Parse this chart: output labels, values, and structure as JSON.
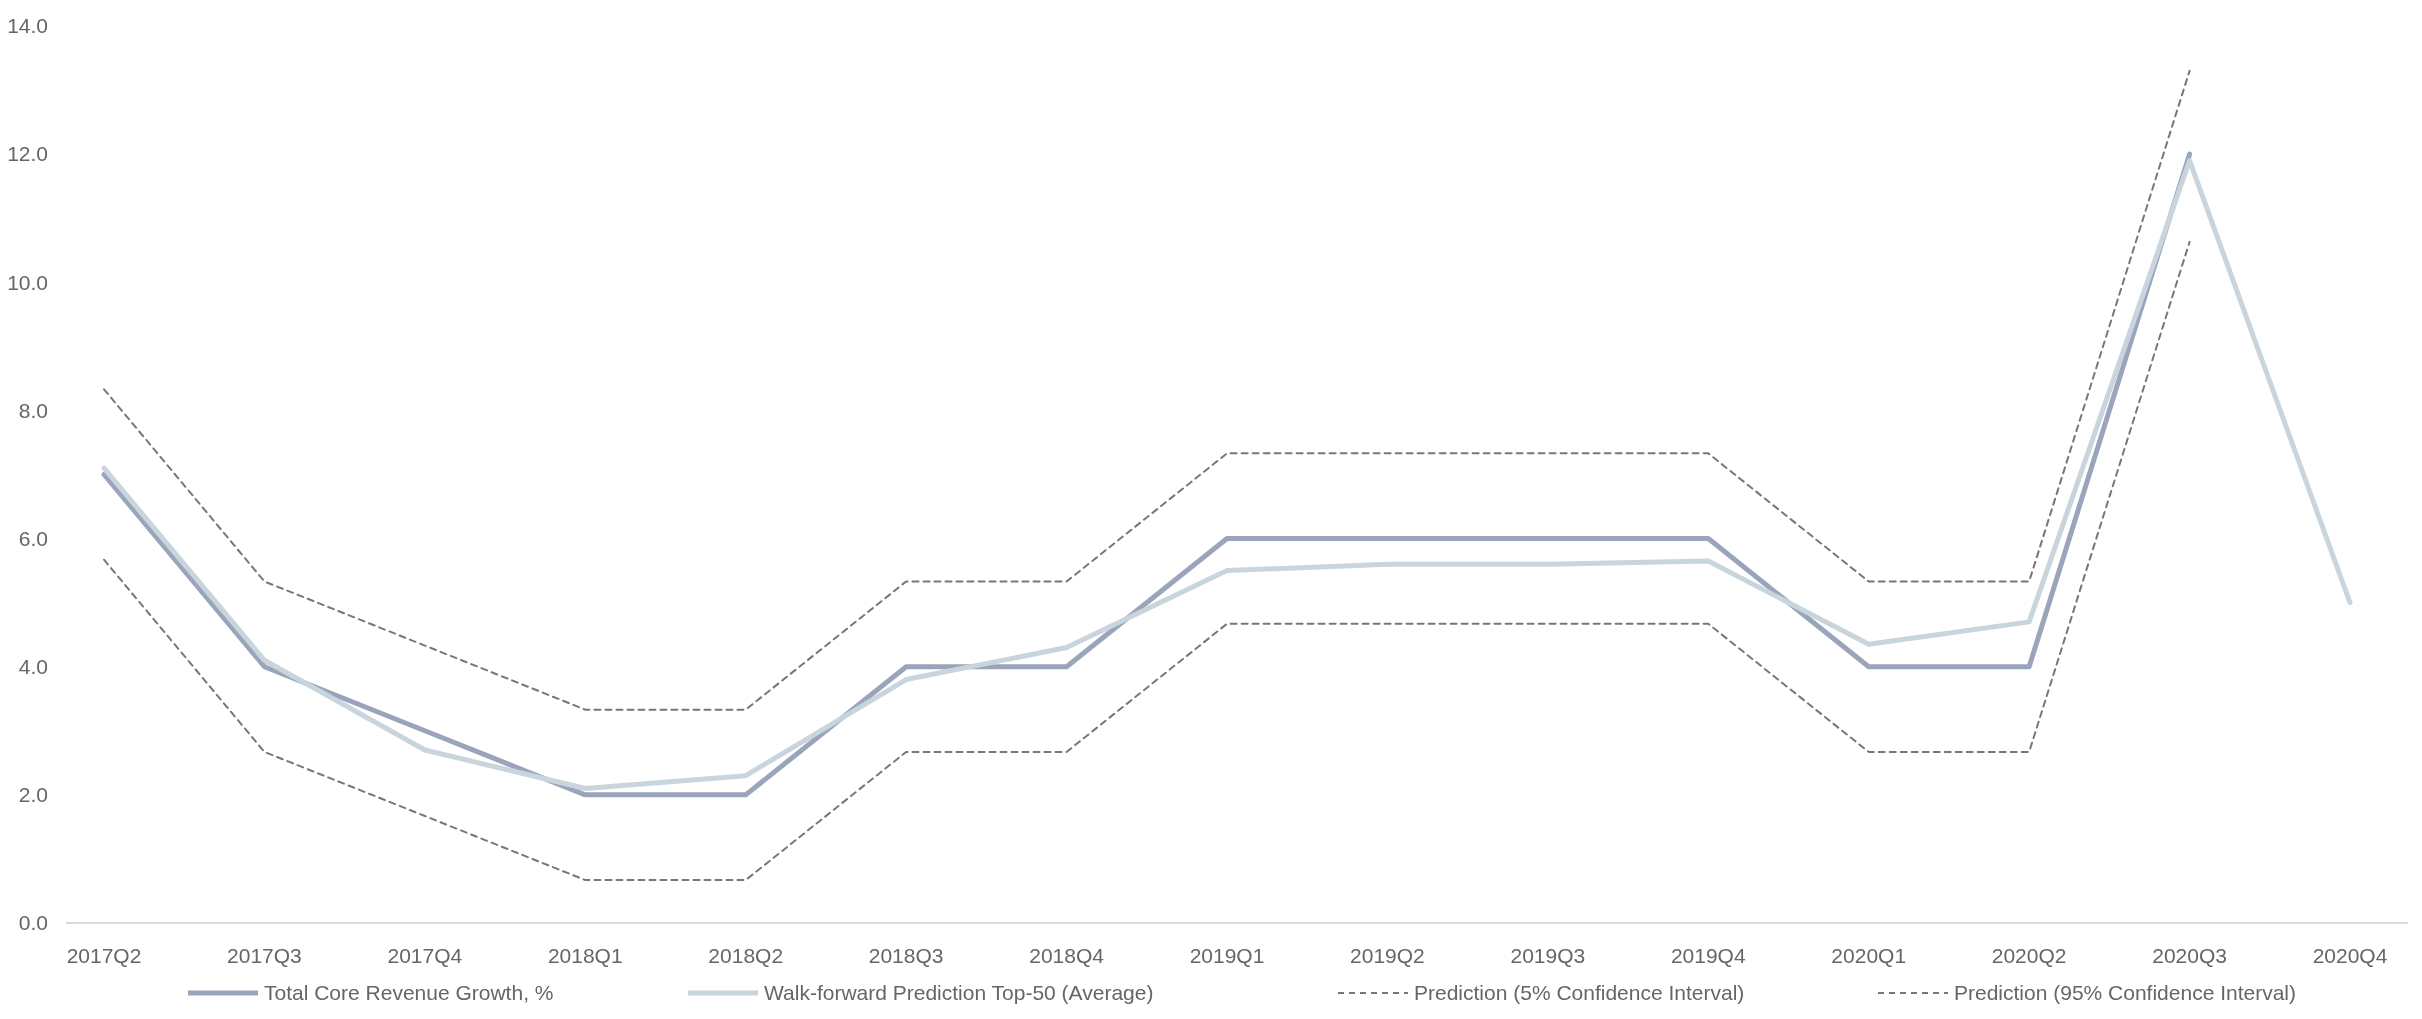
{
  "chart_data": {
    "type": "line",
    "categories": [
      "2017Q2",
      "2017Q3",
      "2017Q4",
      "2018Q1",
      "2018Q2",
      "2018Q3",
      "2018Q4",
      "2019Q1",
      "2019Q2",
      "2019Q3",
      "2019Q4",
      "2020Q1",
      "2020Q2",
      "2020Q3",
      "2020Q4"
    ],
    "series": [
      {
        "name": "Total Core Revenue Growth, %",
        "color": "#9aa5bc",
        "values": [
          7,
          4,
          3,
          2,
          2,
          4,
          4,
          6,
          6,
          6,
          6,
          4,
          4,
          12,
          null
        ]
      },
      {
        "name": "Walk-forward Prediction Top-50 (Average)",
        "color": "#c8d5dc",
        "values": [
          7.1,
          4.1,
          2.7,
          2.1,
          2.3,
          3.8,
          4.3,
          5.5,
          5.6,
          5.6,
          5.65,
          4.35,
          4.7,
          11.9,
          5.0
        ]
      },
      {
        "name": "Prediction (5% Confidence Interval)",
        "color": "#777777",
        "line_style": "dashed",
        "values": [
          5.67,
          2.67,
          1.67,
          0.67,
          0.67,
          2.67,
          2.67,
          4.67,
          4.67,
          4.67,
          4.67,
          2.67,
          2.67,
          10.63,
          null
        ]
      },
      {
        "name": "Prediction (95% Confidence Interval)",
        "color": "#777777",
        "line_style": "dashed",
        "values": [
          8.33,
          5.33,
          4.33,
          3.33,
          3.33,
          5.33,
          5.33,
          7.33,
          7.33,
          7.33,
          7.33,
          5.33,
          5.33,
          13.3,
          null
        ]
      }
    ],
    "ylim": [
      0,
      14
    ],
    "yticks": [
      {
        "value": 0,
        "label": "0.0"
      },
      {
        "value": 2,
        "label": "2.0"
      },
      {
        "value": 4,
        "label": "4.0"
      },
      {
        "value": 6,
        "label": "6.0"
      },
      {
        "value": 8,
        "label": "8.0"
      },
      {
        "value": 10,
        "label": "10.0"
      },
      {
        "value": 12,
        "label": "12.0"
      },
      {
        "value": 14,
        "label": "14.0"
      }
    ],
    "grid": false,
    "legend": "bottom"
  }
}
